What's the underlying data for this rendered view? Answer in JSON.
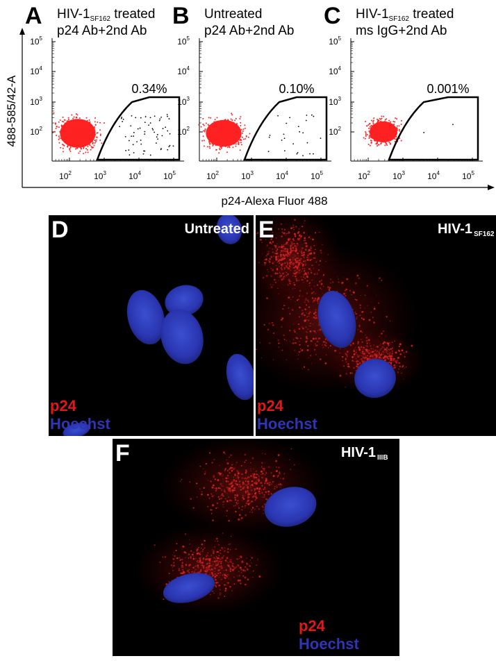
{
  "flow": {
    "y_axis_title": "488-585/42-A",
    "x_axis_title": "p24-Alexa Fluor 488",
    "tick_base": "10",
    "x_exponents": [
      "2",
      "3",
      "4",
      "5"
    ],
    "y_exponents": [
      "2",
      "3",
      "4",
      "5"
    ],
    "panels": [
      {
        "letter": "A",
        "title_main": "HIV-1",
        "title_sub": "SF162",
        "title_rest": " treated",
        "line2": "p24 Ab+2nd Ab",
        "gate_label": "0.34%"
      },
      {
        "letter": "B",
        "title_main": "Untreated",
        "line2": "p24 Ab+2nd Ab",
        "gate_label": "0.10%"
      },
      {
        "letter": "C",
        "title_main": "HIV-1",
        "title_sub": "SF162",
        "title_rest": " treated",
        "line2": "ms IgG+2nd Ab",
        "gate_label": "0.001%"
      }
    ]
  },
  "micrographs": [
    {
      "letter": "D",
      "label_main": "Untreated",
      "stain1": "p24",
      "stain2": "Hoechst"
    },
    {
      "letter": "E",
      "label_main": "HIV-1",
      "label_sub": "SF162",
      "stain1": "p24",
      "stain2": "Hoechst"
    },
    {
      "letter": "F",
      "label_main": "HIV-1",
      "label_sub": "IIIB",
      "stain1": "p24",
      "stain2": "Hoechst"
    }
  ]
}
